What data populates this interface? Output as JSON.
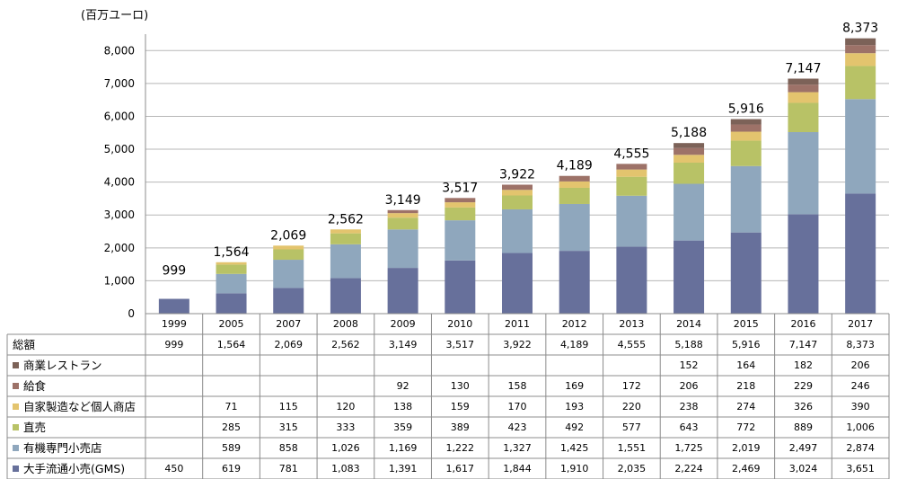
{
  "chart_data": {
    "type": "bar",
    "stacked": true,
    "unit_label": "(百万ユーロ)",
    "categories": [
      "1999",
      "2005",
      "2007",
      "2008",
      "2009",
      "2010",
      "2011",
      "2012",
      "2013",
      "2014",
      "2015",
      "2016",
      "2017"
    ],
    "ylim": [
      0,
      8500
    ],
    "yticks": [
      0,
      1000,
      2000,
      3000,
      4000,
      5000,
      6000,
      7000,
      8000
    ],
    "ytick_labels": [
      "0",
      "1,000",
      "2,000",
      "3,000",
      "4,000",
      "5,000",
      "6,000",
      "7,000",
      "8,000"
    ],
    "grid": true,
    "total": {
      "name": "総額",
      "values": [
        999,
        1564,
        2069,
        2562,
        3149,
        3517,
        3922,
        4189,
        4555,
        5188,
        5916,
        7147,
        8373
      ],
      "labels": [
        "999",
        "1,564",
        "2,069",
        "2,562",
        "3,149",
        "3,517",
        "3,922",
        "4,189",
        "4,555",
        "5,188",
        "5,916",
        "7,147",
        "8,373"
      ]
    },
    "series": [
      {
        "name": "大手流通小売(GMS)",
        "color": "#67709b",
        "values": [
          450,
          619,
          781,
          1083,
          1391,
          1617,
          1844,
          1910,
          2035,
          2224,
          2469,
          3024,
          3651
        ],
        "labels": [
          "450",
          "619",
          "781",
          "1,083",
          "1,391",
          "1,617",
          "1,844",
          "1,910",
          "2,035",
          "2,224",
          "2,469",
          "3,024",
          "3,651"
        ]
      },
      {
        "name": "有機専門小売店",
        "color": "#8fa7bd",
        "values": [
          null,
          589,
          858,
          1026,
          1169,
          1222,
          1327,
          1425,
          1551,
          1725,
          2019,
          2497,
          2874
        ],
        "labels": [
          "",
          "589",
          "858",
          "1,026",
          "1,169",
          "1,222",
          "1,327",
          "1,425",
          "1,551",
          "1,725",
          "2,019",
          "2,497",
          "2,874"
        ]
      },
      {
        "name": "直売",
        "color": "#b8c266",
        "values": [
          null,
          285,
          315,
          333,
          359,
          389,
          423,
          492,
          577,
          643,
          772,
          889,
          1006
        ],
        "labels": [
          "",
          "285",
          "315",
          "333",
          "359",
          "389",
          "423",
          "492",
          "577",
          "643",
          "772",
          "889",
          "1,006"
        ]
      },
      {
        "name": "自家製造など個人商店",
        "color": "#e3c46e",
        "values": [
          null,
          71,
          115,
          120,
          138,
          159,
          170,
          193,
          220,
          238,
          274,
          326,
          390
        ],
        "labels": [
          "",
          "71",
          "115",
          "120",
          "138",
          "159",
          "170",
          "193",
          "220",
          "238",
          "274",
          "326",
          "390"
        ]
      },
      {
        "name": "給食",
        "color": "#9d7268",
        "values": [
          null,
          null,
          null,
          null,
          92,
          130,
          158,
          169,
          172,
          206,
          218,
          229,
          246
        ],
        "labels": [
          "",
          "",
          "",
          "",
          "92",
          "130",
          "158",
          "169",
          "172",
          "206",
          "218",
          "229",
          "246"
        ]
      },
      {
        "name": "商業レストラン",
        "color": "#7c6258",
        "values": [
          null,
          null,
          null,
          null,
          null,
          null,
          null,
          null,
          null,
          152,
          164,
          182,
          206
        ],
        "labels": [
          "",
          "",
          "",
          "",
          "",
          "",
          "",
          "",
          "",
          "152",
          "164",
          "182",
          "206"
        ]
      }
    ]
  }
}
